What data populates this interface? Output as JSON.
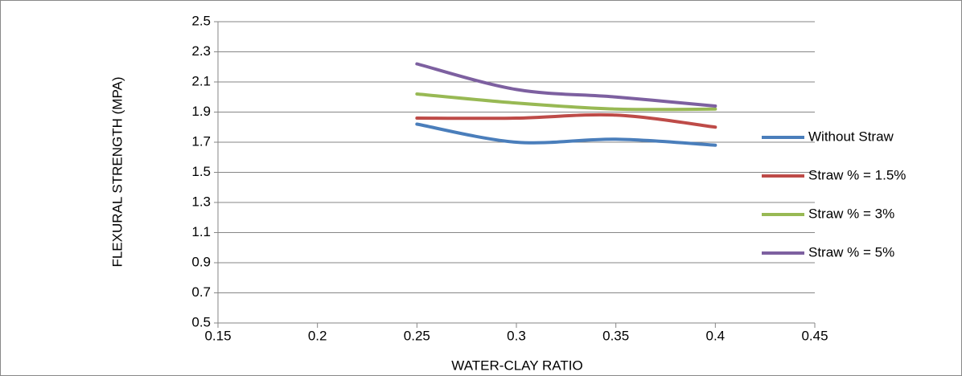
{
  "chart_data": {
    "type": "line",
    "x_label": "WATER-CLAY RATIO",
    "y_label": "FLEXURAL STRENGTH (MPA)",
    "x": [
      0.25,
      0.3,
      0.35,
      0.4
    ],
    "series": [
      {
        "name": "Without Straw",
        "color": "#4a7ebb",
        "values": [
          1.82,
          1.7,
          1.72,
          1.68
        ]
      },
      {
        "name": "Straw % = 1.5%",
        "color": "#be4b48",
        "values": [
          1.86,
          1.86,
          1.88,
          1.8
        ]
      },
      {
        "name": "Straw % = 3%",
        "color": "#98b954",
        "values": [
          2.02,
          1.96,
          1.92,
          1.92
        ]
      },
      {
        "name": "Straw % = 5%",
        "color": "#7d60a0",
        "values": [
          2.22,
          2.05,
          2.0,
          1.94
        ]
      }
    ],
    "xlim": [
      0.15,
      0.45
    ],
    "xticks": [
      0.15,
      0.2,
      0.25,
      0.3,
      0.35,
      0.4,
      0.45
    ],
    "ylim": [
      0.5,
      2.5
    ],
    "yticks": [
      0.5,
      0.7,
      0.9,
      1.1,
      1.3,
      1.5,
      1.7,
      1.9,
      2.1,
      2.3,
      2.5
    ],
    "grid": true,
    "smooth": true,
    "legend": "right"
  }
}
